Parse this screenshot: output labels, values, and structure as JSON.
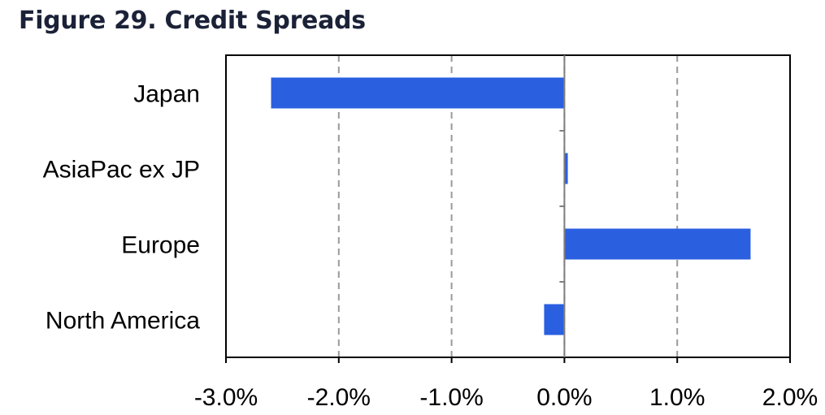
{
  "title": "Figure 29. Credit Spreads",
  "chart_data": {
    "type": "bar",
    "orientation": "horizontal",
    "title": "Figure 29. Credit Spreads",
    "categories": [
      "Japan",
      "AsiaPac ex JP",
      "Europe",
      "North America"
    ],
    "values": [
      -2.6,
      0.03,
      1.65,
      -0.18
    ],
    "xlim": [
      -3.0,
      2.0
    ],
    "xticks": [
      -3.0,
      -2.0,
      -1.0,
      0.0,
      1.0,
      2.0
    ],
    "xtick_labels": [
      "-3.0%",
      "-2.0%",
      "-1.0%",
      "0.0%",
      "1.0%",
      "2.0%"
    ],
    "grid": "vertical dashed",
    "bar_color": "#2a5fe0",
    "grid_color": "#9a9a9a"
  }
}
